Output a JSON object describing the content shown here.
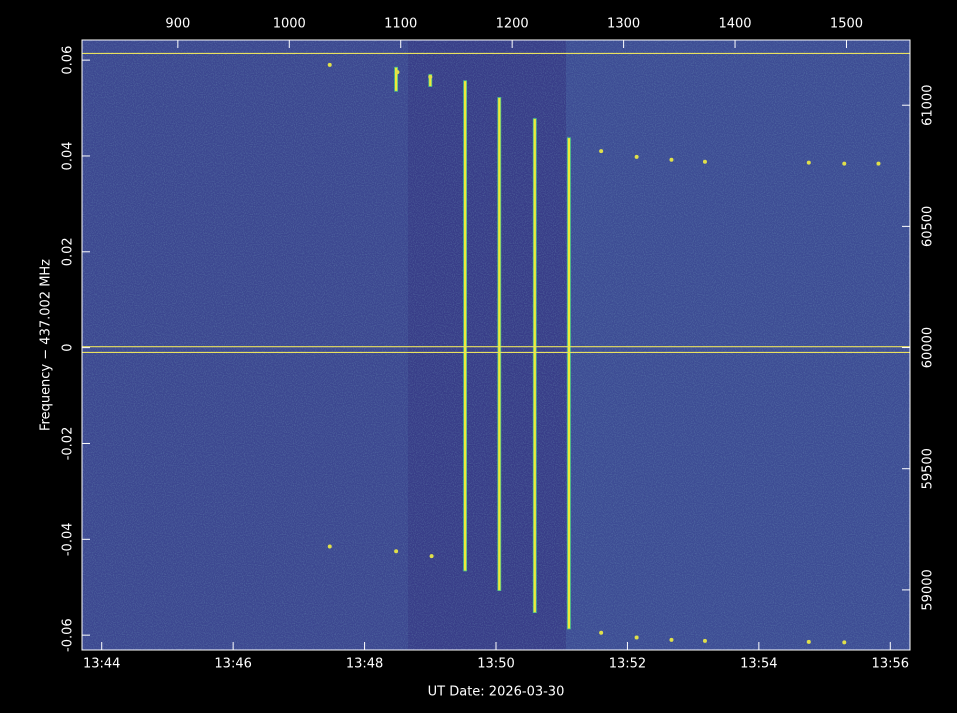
{
  "chart_data": {
    "type": "spectrogram",
    "xlabel": "UT Date: 2026-03-30",
    "ylabel": "Frequency − 437.002 MHz",
    "xlim": [
      43.7,
      56.3
    ],
    "xticks": [
      {
        "value": 44,
        "label": "13:44"
      },
      {
        "value": 46,
        "label": "13:46"
      },
      {
        "value": 48,
        "label": "13:48"
      },
      {
        "value": 50,
        "label": "13:50"
      },
      {
        "value": 52,
        "label": "13:52"
      },
      {
        "value": 54,
        "label": "13:54"
      },
      {
        "value": 56,
        "label": "13:56"
      }
    ],
    "x2lim": [
      814,
      1557
    ],
    "x2ticks": [
      900,
      1000,
      1100,
      1200,
      1300,
      1400,
      1500
    ],
    "ylim": [
      -0.0631,
      0.0642
    ],
    "yticks": [
      -0.06,
      -0.04,
      -0.02,
      0,
      0.02,
      0.04,
      0.06
    ],
    "y2lim": [
      58752,
      61269
    ],
    "y2ticks": [
      59000,
      59500,
      60000,
      60500,
      61000
    ],
    "hlines": {
      "y": [
        0.0614,
        0.0002,
        -0.001
      ],
      "color": "#e8e060"
    },
    "traces": {
      "x": [
        48.48,
        49.0,
        49.53,
        50.05,
        50.59,
        51.11
      ],
      "y_top": [
        0.0585,
        0.057,
        0.0557,
        0.0522,
        0.0478,
        0.0438
      ],
      "y_bottom": [
        0.0535,
        0.0545,
        -0.0466,
        -0.0507,
        -0.0553,
        -0.0587
      ],
      "color": "#f2e83a"
    },
    "points": {
      "x": [
        47.47,
        48.5,
        49.0,
        51.6,
        52.14,
        52.67,
        53.18,
        54.76,
        55.3,
        55.82,
        47.47,
        48.48,
        49.02,
        51.6,
        52.14,
        52.67,
        53.18,
        54.76,
        55.3
      ],
      "y": [
        0.059,
        0.0575,
        0.0565,
        0.041,
        0.0398,
        0.0392,
        0.0388,
        0.0386,
        0.0384,
        0.0384,
        -0.0415,
        -0.0425,
        -0.0435,
        -0.0595,
        -0.0605,
        -0.061,
        -0.0612,
        -0.0614,
        -0.0615
      ],
      "color": "#e0e04a"
    }
  }
}
